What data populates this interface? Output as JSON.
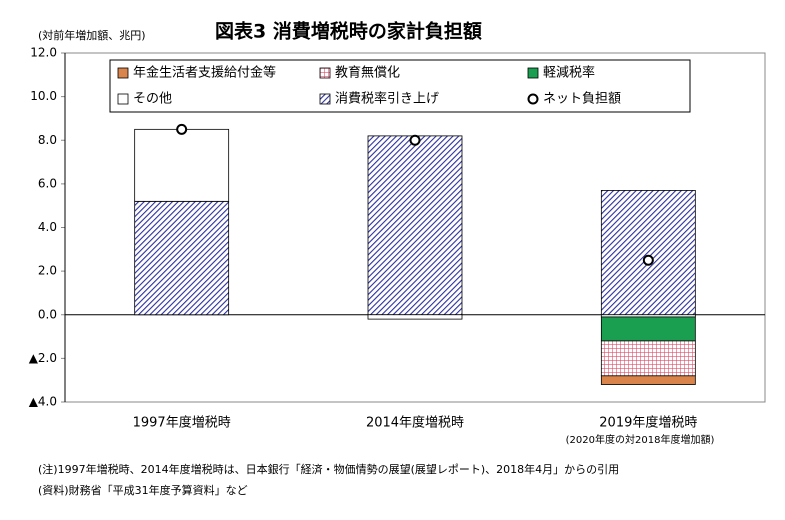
{
  "chart_data": {
    "type": "bar",
    "stacked": true,
    "title": "図表3 消費増税時の家計負担額",
    "y_label": "(対前年増加額、兆円)",
    "categories": [
      "1997年度増税時",
      "2014年度増税時",
      "2019年度増税時"
    ],
    "category_note": "(2020年度の対2018年度増加額)",
    "series": [
      {
        "name": "年金生活者支援給付金等",
        "color": "#d9844a",
        "pattern": "solid",
        "values": [
          null,
          null,
          -0.4
        ]
      },
      {
        "name": "教育無償化",
        "color": "#e0506a",
        "pattern": "grid",
        "values": [
          null,
          null,
          -1.6
        ]
      },
      {
        "name": "軽減税率",
        "color": "#1a9e4f",
        "pattern": "solid",
        "values": [
          null,
          null,
          -1.1
        ]
      },
      {
        "name": "その他",
        "color": "#ffffff",
        "pattern": "solid",
        "values": [
          3.3,
          -0.2,
          -0.1
        ]
      },
      {
        "name": "消費税率引き上げ",
        "color": "#2b2f9e",
        "pattern": "hatch",
        "values": [
          5.2,
          8.2,
          5.7
        ]
      },
      {
        "name": "ネット負担額",
        "type": "point",
        "color": "#000000",
        "values": [
          8.5,
          8.0,
          2.5
        ]
      }
    ],
    "ylim": [
      -4,
      12
    ],
    "yticks": [
      {
        "value": -4,
        "label": "▲4.0"
      },
      {
        "value": -2,
        "label": "▲2.0"
      },
      {
        "value": 0,
        "label": "0.0"
      },
      {
        "value": 2,
        "label": "2.0"
      },
      {
        "value": 4,
        "label": "4.0"
      },
      {
        "value": 6,
        "label": "6.0"
      },
      {
        "value": 8,
        "label": "8.0"
      },
      {
        "value": 10,
        "label": "10.0"
      },
      {
        "value": 12,
        "label": "12.0"
      }
    ],
    "notes": [
      "(注)1997年増税時、2014年度増税時は、日本銀行「経済・物価情勢の展望(展望レポート)、2018年4月」からの引用",
      "(資料)財務省「平成31年度予算資料」など"
    ]
  }
}
